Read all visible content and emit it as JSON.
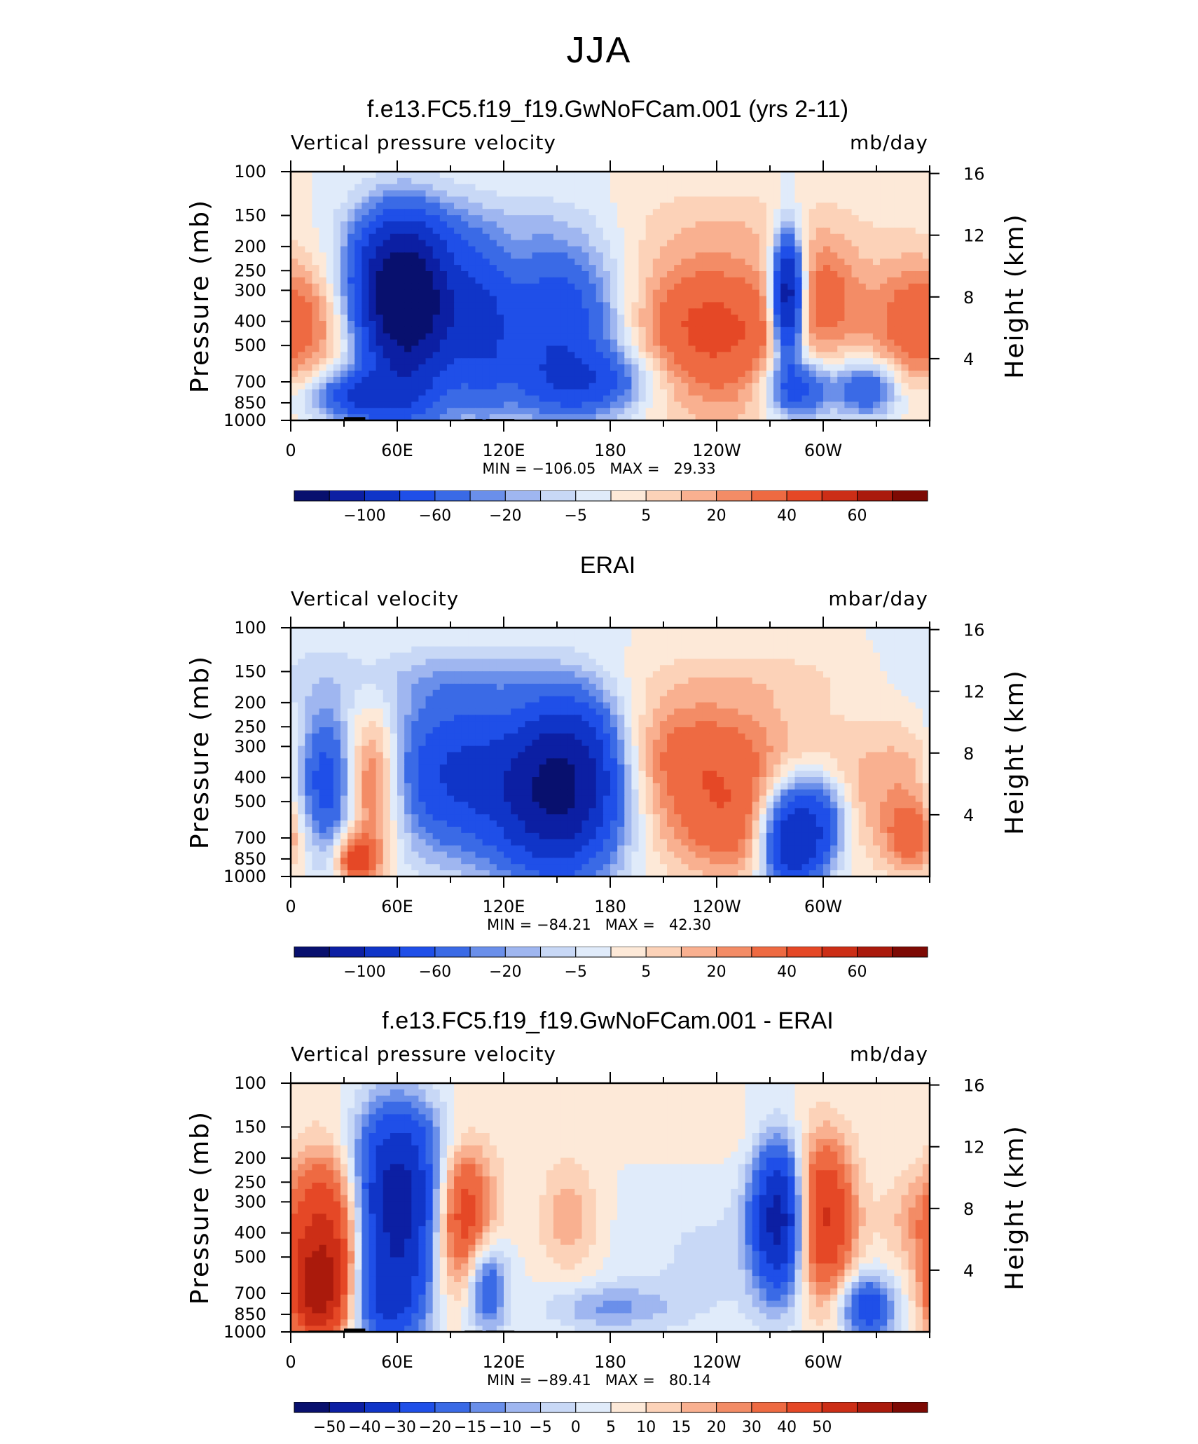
{
  "figure": {
    "title": "JJA"
  },
  "colors": {
    "neg": [
      "#08106e",
      "#0c1fa3",
      "#1035c8",
      "#1f4fe8",
      "#3a6ae6",
      "#6a8fea",
      "#9fb6f0",
      "#c8d8f6",
      "#e0ebfa"
    ],
    "pos": [
      "#fde9d8",
      "#fcd2b8",
      "#f9b090",
      "#f38c66",
      "#ee6a42",
      "#e54826",
      "#cc2e16",
      "#aa1a0c",
      "#7d0a04"
    ]
  },
  "panels": [
    {
      "title": "f.e13.FC5.f19_f19.GwNoFCam.001 (yrs 2-11)",
      "left_label": "Vertical pressure velocity",
      "right_label": "mb/day",
      "minmax": "MIN = −106.05   MAX =   29.33",
      "colorbar_labels": [
        "−100",
        "−60",
        "−20",
        "−5",
        "5",
        "20",
        "40",
        "60"
      ],
      "has_topography": true
    },
    {
      "title": "ERAI",
      "left_label": "Vertical velocity",
      "right_label": "mbar/day",
      "minmax": "MIN = −84.21   MAX =   42.30",
      "colorbar_labels": [
        "−100",
        "−60",
        "−20",
        "−5",
        "5",
        "20",
        "40",
        "60"
      ],
      "has_topography": false
    },
    {
      "title": "f.e13.FC5.f19_f19.GwNoFCam.001 - ERAI",
      "left_label": "Vertical pressure velocity",
      "right_label": "mb/day",
      "minmax": "MIN = −89.41   MAX =   80.14",
      "colorbar_labels": [
        "−50",
        "−40",
        "−30",
        "−20",
        "−15",
        "−10",
        "−5",
        "0",
        "5",
        "10",
        "15",
        "20",
        "30",
        "40",
        "50"
      ],
      "has_topography": true
    }
  ],
  "chart_data": [
    {
      "type": "heatmap",
      "title": "f.e13.FC5.f19_f19.GwNoFCam.001 (yrs 2-11)",
      "variable": "Vertical pressure velocity",
      "units": "mb/day",
      "xlabel": "",
      "ylabel": "Pressure (mb)",
      "ylabel_right": "Height (km)",
      "x_ticks": [
        "0",
        "60E",
        "120E",
        "180",
        "120W",
        "60W"
      ],
      "y_ticks": [
        "100",
        "150",
        "200",
        "250",
        "300",
        "400",
        "500",
        "700",
        "850",
        "1000"
      ],
      "y2_ticks": [
        "16",
        "12",
        "8",
        "4"
      ],
      "xlim": [
        0,
        360
      ],
      "ylim": [
        1000,
        100
      ],
      "min": -106.05,
      "max": 29.33,
      "colorbar": [
        "−100",
        "−60",
        "−20",
        "−5",
        "5",
        "20",
        "40",
        "60"
      ],
      "features": [
        {
          "lon": 20,
          "p": 400,
          "value": 15
        },
        {
          "lon": 60,
          "p": 300,
          "value": -100
        },
        {
          "lon": 150,
          "p": 400,
          "value": -40
        },
        {
          "lon": 230,
          "p": 400,
          "value": 25
        },
        {
          "lon": 280,
          "p": 300,
          "value": -80
        },
        {
          "lon": 350,
          "p": 400,
          "value": 20
        }
      ]
    },
    {
      "type": "heatmap",
      "title": "ERAI",
      "variable": "Vertical velocity",
      "units": "mbar/day",
      "xlabel": "",
      "ylabel": "Pressure (mb)",
      "ylabel_right": "Height (km)",
      "x_ticks": [
        "0",
        "60E",
        "120E",
        "180",
        "120W",
        "60W"
      ],
      "y_ticks": [
        "100",
        "150",
        "200",
        "250",
        "300",
        "400",
        "500",
        "700",
        "850",
        "1000"
      ],
      "y2_ticks": [
        "16",
        "12",
        "8",
        "4"
      ],
      "xlim": [
        0,
        360
      ],
      "ylim": [
        1000,
        100
      ],
      "min": -84.21,
      "max": 42.3,
      "colorbar": [
        "−100",
        "−60",
        "−20",
        "−5",
        "5",
        "20",
        "40",
        "60"
      ],
      "features": [
        {
          "lon": 20,
          "p": 400,
          "value": -40
        },
        {
          "lon": 45,
          "p": 400,
          "value": 25
        },
        {
          "lon": 90,
          "p": 400,
          "value": -40
        },
        {
          "lon": 150,
          "p": 500,
          "value": -80
        },
        {
          "lon": 230,
          "p": 350,
          "value": 25
        },
        {
          "lon": 290,
          "p": 700,
          "value": -60
        }
      ]
    },
    {
      "type": "heatmap",
      "title": "f.e13.FC5.f19_f19.GwNoFCam.001 - ERAI",
      "variable": "Vertical pressure velocity",
      "units": "mb/day",
      "xlabel": "",
      "ylabel": "Pressure (mb)",
      "ylabel_right": "Height (km)",
      "x_ticks": [
        "0",
        "60E",
        "120E",
        "180",
        "120W",
        "60W"
      ],
      "y_ticks": [
        "100",
        "150",
        "200",
        "250",
        "300",
        "400",
        "500",
        "700",
        "850",
        "1000"
      ],
      "y2_ticks": [
        "16",
        "12",
        "8",
        "4"
      ],
      "xlim": [
        0,
        360
      ],
      "ylim": [
        1000,
        100
      ],
      "min": -89.41,
      "max": 80.14,
      "colorbar": [
        "−50",
        "−40",
        "−30",
        "−20",
        "−15",
        "−10",
        "−5",
        "0",
        "5",
        "10",
        "15",
        "20",
        "30",
        "40",
        "50"
      ],
      "features": [
        {
          "lon": 20,
          "p": 400,
          "value": 40
        },
        {
          "lon": 60,
          "p": 300,
          "value": -60
        },
        {
          "lon": 95,
          "p": 350,
          "value": 35
        },
        {
          "lon": 155,
          "p": 350,
          "value": 12
        },
        {
          "lon": 280,
          "p": 300,
          "value": -60
        },
        {
          "lon": 300,
          "p": 350,
          "value": 40
        }
      ]
    }
  ],
  "axes": {
    "x_ticks": [
      "0",
      "60E",
      "120E",
      "180",
      "120W",
      "60W"
    ],
    "y_ticks": [
      "100",
      "150",
      "200",
      "250",
      "300",
      "400",
      "500",
      "700",
      "850",
      "1000"
    ],
    "y2_ticks": [
      "16",
      "12",
      "8",
      "4"
    ],
    "y_label": "Pressure (mb)",
    "y2_label": "Height (km)"
  }
}
